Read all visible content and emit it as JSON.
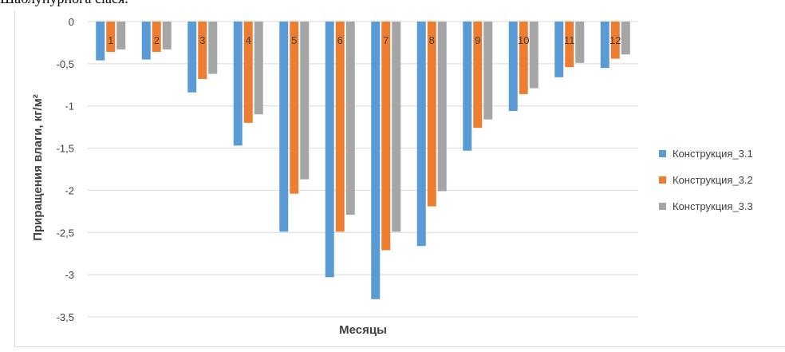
{
  "caption_fragment": "Шаблунурнога сlася.",
  "chart_data": {
    "type": "bar",
    "title": "",
    "xlabel": "Месяцы",
    "ylabel": "Приращения влаги, кг/м²",
    "categories": [
      "1",
      "2",
      "3",
      "4",
      "5",
      "6",
      "7",
      "8",
      "9",
      "10",
      "11",
      "12"
    ],
    "ylim": [
      -3.5,
      0
    ],
    "yticks": [
      "0",
      "-0,5",
      "-1",
      "-1,5",
      "-2",
      "-2,5",
      "-3",
      "-3,5"
    ],
    "ytick_values": [
      0,
      -0.5,
      -1,
      -1.5,
      -2,
      -2.5,
      -3,
      -3.5
    ],
    "grid": true,
    "legend_position": "right",
    "category_labels_position": "inside-top",
    "series": [
      {
        "name": "Конструкция_3.1",
        "color": "#5b9bd5",
        "values": [
          -0.46,
          -0.45,
          -0.84,
          -1.47,
          -2.49,
          -3.03,
          -3.29,
          -2.66,
          -1.53,
          -1.06,
          -0.66,
          -0.55
        ]
      },
      {
        "name": "Конструкция_3.2",
        "color": "#ed7d31",
        "values": [
          -0.36,
          -0.36,
          -0.68,
          -1.2,
          -2.04,
          -2.49,
          -2.71,
          -2.19,
          -1.26,
          -0.86,
          -0.54,
          -0.44
        ]
      },
      {
        "name": "Конструкция_3.3",
        "color": "#a5a5a5",
        "values": [
          -0.33,
          -0.33,
          -0.62,
          -1.1,
          -1.87,
          -2.29,
          -2.49,
          -2.01,
          -1.16,
          -0.79,
          -0.49,
          -0.39
        ]
      }
    ]
  }
}
